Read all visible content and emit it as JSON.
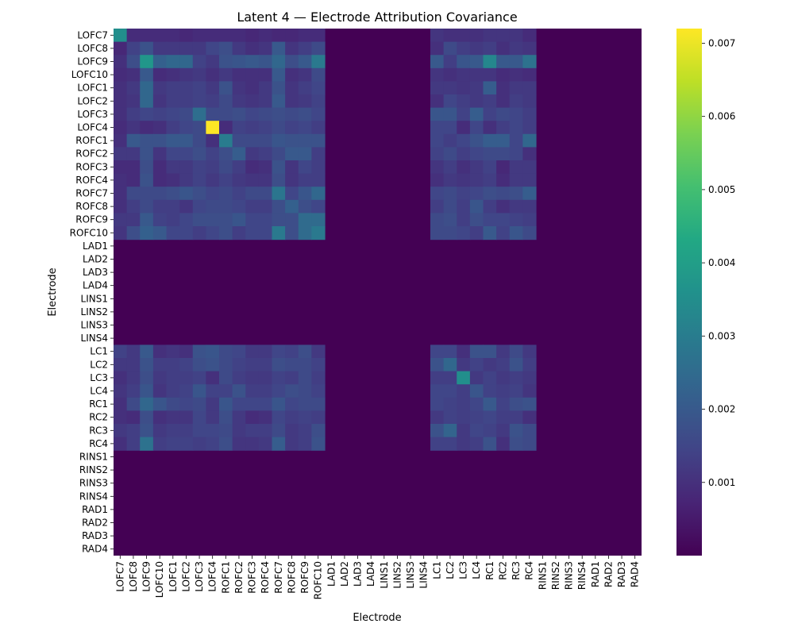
{
  "chart_data": {
    "type": "heatmap",
    "title": "Latent 4 — Electrode Attribution Covariance",
    "xlabel": "Electrode",
    "ylabel": "Electrode",
    "labels": [
      "LOFC7",
      "LOFC8",
      "LOFC9",
      "LOFC10",
      "LOFC1",
      "LOFC2",
      "LOFC3",
      "LOFC4",
      "ROFC1",
      "ROFC2",
      "ROFC3",
      "ROFC4",
      "ROFC7",
      "ROFC8",
      "ROFC9",
      "ROFC10",
      "LAD1",
      "LAD2",
      "LAD3",
      "LAD4",
      "LINS1",
      "LINS2",
      "LINS3",
      "LINS4",
      "LC1",
      "LC2",
      "LC3",
      "LC4",
      "RC1",
      "RC2",
      "RC3",
      "RC4",
      "RINS1",
      "RINS2",
      "RINS3",
      "RINS4",
      "RAD1",
      "RAD2",
      "RAD3",
      "RAD4"
    ],
    "colormap": "viridis",
    "vmin": 0.0,
    "vmax": 0.0072,
    "colorbar_ticks": [
      0.001,
      0.002,
      0.003,
      0.004,
      0.005,
      0.006,
      0.007
    ],
    "colorbar_tick_labels": [
      "0.001",
      "0.002",
      "0.003",
      "0.004",
      "0.005",
      "0.006",
      "0.007"
    ],
    "active_blocks": [
      [
        0,
        16
      ],
      [
        24,
        32
      ]
    ],
    "background_value": 0.0,
    "values_active": [
      [
        0.0035,
        0.0009,
        0.0009,
        0.0009,
        0.0009,
        0.0008,
        0.0009,
        0.0009,
        0.0009,
        0.0009,
        0.0008,
        0.0009,
        0.0008,
        0.0008,
        0.0009,
        0.0009,
        0.0011,
        0.001,
        0.001,
        0.001,
        0.0011,
        0.0011,
        0.0011,
        0.0009
      ],
      [
        0.0008,
        0.0014,
        0.0018,
        0.0012,
        0.0012,
        0.0012,
        0.0012,
        0.0015,
        0.0017,
        0.0012,
        0.001,
        0.0011,
        0.002,
        0.0011,
        0.0013,
        0.0016,
        0.001,
        0.0016,
        0.0013,
        0.0012,
        0.0013,
        0.001,
        0.0012,
        0.0011
      ],
      [
        0.001,
        0.0017,
        0.0038,
        0.0022,
        0.0024,
        0.0024,
        0.0014,
        0.0012,
        0.0018,
        0.0019,
        0.002,
        0.0019,
        0.0024,
        0.0017,
        0.002,
        0.0029,
        0.002,
        0.0013,
        0.0019,
        0.002,
        0.0033,
        0.002,
        0.002,
        0.0027
      ],
      [
        0.0009,
        0.001,
        0.002,
        0.0009,
        0.001,
        0.0011,
        0.0012,
        0.001,
        0.0012,
        0.001,
        0.001,
        0.001,
        0.002,
        0.001,
        0.0011,
        0.0016,
        0.0011,
        0.001,
        0.0011,
        0.0011,
        0.0011,
        0.0009,
        0.001,
        0.0009
      ],
      [
        0.001,
        0.0012,
        0.0024,
        0.0012,
        0.0013,
        0.0013,
        0.0014,
        0.0012,
        0.0018,
        0.0011,
        0.001,
        0.0012,
        0.0018,
        0.0011,
        0.0013,
        0.0015,
        0.0012,
        0.0012,
        0.0011,
        0.0012,
        0.0021,
        0.001,
        0.0012,
        0.0012
      ],
      [
        0.001,
        0.0011,
        0.0024,
        0.0011,
        0.0013,
        0.0013,
        0.0014,
        0.0013,
        0.0016,
        0.0012,
        0.0011,
        0.0012,
        0.002,
        0.0011,
        0.0012,
        0.0014,
        0.001,
        0.0015,
        0.0013,
        0.0012,
        0.0013,
        0.001,
        0.0013,
        0.0012
      ],
      [
        0.001,
        0.0013,
        0.0015,
        0.0014,
        0.0015,
        0.0016,
        0.0026,
        0.0016,
        0.0016,
        0.0017,
        0.0015,
        0.0016,
        0.0017,
        0.0016,
        0.0017,
        0.0015,
        0.0019,
        0.0019,
        0.0014,
        0.0021,
        0.0014,
        0.0016,
        0.0015,
        0.0013
      ],
      [
        0.0009,
        0.0011,
        0.0009,
        0.001,
        0.0013,
        0.0015,
        0.0016,
        0.0072,
        0.0009,
        0.0014,
        0.0013,
        0.0014,
        0.0016,
        0.0014,
        0.0015,
        0.0013,
        0.0015,
        0.0015,
        0.0009,
        0.0015,
        0.001,
        0.0013,
        0.0015,
        0.0013
      ],
      [
        0.001,
        0.002,
        0.0018,
        0.0018,
        0.002,
        0.002,
        0.0016,
        0.001,
        0.003,
        0.0016,
        0.0016,
        0.0016,
        0.0019,
        0.0018,
        0.0018,
        0.0018,
        0.0015,
        0.0013,
        0.0015,
        0.0018,
        0.0021,
        0.0021,
        0.0015,
        0.0024
      ],
      [
        0.0012,
        0.0012,
        0.0018,
        0.0011,
        0.0015,
        0.0015,
        0.0017,
        0.0014,
        0.0017,
        0.0021,
        0.0012,
        0.0013,
        0.0016,
        0.002,
        0.002,
        0.0013,
        0.0014,
        0.0016,
        0.0013,
        0.0015,
        0.0016,
        0.0016,
        0.0015,
        0.001
      ],
      [
        0.0009,
        0.0009,
        0.0017,
        0.0009,
        0.0012,
        0.0012,
        0.0014,
        0.0013,
        0.0016,
        0.0013,
        0.0009,
        0.001,
        0.0018,
        0.0011,
        0.0015,
        0.0013,
        0.0011,
        0.0013,
        0.001,
        0.0012,
        0.0014,
        0.0008,
        0.0012,
        0.0012
      ],
      [
        0.001,
        0.0009,
        0.0018,
        0.0009,
        0.001,
        0.0012,
        0.0014,
        0.0012,
        0.0014,
        0.0012,
        0.0011,
        0.0011,
        0.0017,
        0.0011,
        0.0013,
        0.0013,
        0.001,
        0.0012,
        0.0011,
        0.0012,
        0.0013,
        0.0009,
        0.0012,
        0.0012
      ],
      [
        0.001,
        0.0016,
        0.0016,
        0.0016,
        0.0017,
        0.0019,
        0.0017,
        0.0015,
        0.0016,
        0.0014,
        0.0016,
        0.0016,
        0.0028,
        0.0015,
        0.0019,
        0.0024,
        0.0015,
        0.0016,
        0.0014,
        0.0015,
        0.0017,
        0.0016,
        0.0017,
        0.0021
      ],
      [
        0.001,
        0.0013,
        0.0016,
        0.0013,
        0.0013,
        0.0011,
        0.0015,
        0.0016,
        0.0016,
        0.0015,
        0.0013,
        0.0013,
        0.0017,
        0.0022,
        0.0017,
        0.0015,
        0.0013,
        0.0016,
        0.0013,
        0.0019,
        0.0013,
        0.001,
        0.0012,
        0.0012
      ],
      [
        0.0012,
        0.0012,
        0.002,
        0.0014,
        0.0013,
        0.0015,
        0.0017,
        0.0017,
        0.0017,
        0.0019,
        0.0015,
        0.0015,
        0.0017,
        0.0017,
        0.0025,
        0.0025,
        0.0016,
        0.0017,
        0.0013,
        0.0017,
        0.0015,
        0.0015,
        0.0014,
        0.0013
      ],
      [
        0.0011,
        0.0017,
        0.0022,
        0.002,
        0.0015,
        0.0015,
        0.0013,
        0.0015,
        0.0017,
        0.0013,
        0.0015,
        0.0015,
        0.0029,
        0.0017,
        0.0025,
        0.0029,
        0.0016,
        0.0016,
        0.0015,
        0.0013,
        0.002,
        0.0014,
        0.0019,
        0.0016
      ],
      [
        0.0014,
        0.0012,
        0.002,
        0.001,
        0.0011,
        0.001,
        0.0018,
        0.0019,
        0.0016,
        0.0015,
        0.0012,
        0.0012,
        0.0015,
        0.0014,
        0.0017,
        0.0012,
        0.0015,
        0.0015,
        0.001,
        0.0018,
        0.0018,
        0.0012,
        0.0016,
        0.0012
      ],
      [
        0.0012,
        0.0012,
        0.0018,
        0.0013,
        0.0013,
        0.0014,
        0.0017,
        0.0018,
        0.0016,
        0.0014,
        0.0013,
        0.0013,
        0.0017,
        0.0016,
        0.0016,
        0.0014,
        0.0018,
        0.0024,
        0.0012,
        0.0014,
        0.0012,
        0.0013,
        0.0018,
        0.0013
      ],
      [
        0.001,
        0.0012,
        0.0017,
        0.0012,
        0.0013,
        0.0013,
        0.0014,
        0.001,
        0.0016,
        0.0013,
        0.0012,
        0.0012,
        0.0014,
        0.0013,
        0.0016,
        0.0013,
        0.0013,
        0.0013,
        0.0035,
        0.0012,
        0.0014,
        0.0012,
        0.0013,
        0.0012
      ],
      [
        0.0011,
        0.0013,
        0.0019,
        0.0011,
        0.0013,
        0.0014,
        0.0019,
        0.0014,
        0.0014,
        0.0018,
        0.0013,
        0.0013,
        0.0015,
        0.0017,
        0.0016,
        0.0014,
        0.0015,
        0.0015,
        0.0013,
        0.0019,
        0.0014,
        0.0013,
        0.0014,
        0.0011
      ],
      [
        0.001,
        0.0016,
        0.0024,
        0.0019,
        0.0016,
        0.0015,
        0.0016,
        0.0012,
        0.0019,
        0.0015,
        0.0015,
        0.0015,
        0.0019,
        0.0015,
        0.0016,
        0.0016,
        0.0015,
        0.0014,
        0.0013,
        0.0015,
        0.002,
        0.0014,
        0.0017,
        0.0018
      ],
      [
        0.001,
        0.0009,
        0.0017,
        0.001,
        0.0011,
        0.0011,
        0.0015,
        0.0012,
        0.0017,
        0.0012,
        0.0009,
        0.001,
        0.0015,
        0.0013,
        0.0014,
        0.0013,
        0.0012,
        0.0014,
        0.0013,
        0.0014,
        0.0015,
        0.0013,
        0.0013,
        0.001
      ],
      [
        0.0012,
        0.0013,
        0.0018,
        0.0012,
        0.0013,
        0.0013,
        0.0015,
        0.0015,
        0.0016,
        0.0012,
        0.0013,
        0.0013,
        0.0016,
        0.0012,
        0.0013,
        0.0017,
        0.0018,
        0.0023,
        0.0012,
        0.0015,
        0.0014,
        0.0012,
        0.0018,
        0.0016
      ],
      [
        0.001,
        0.0013,
        0.0027,
        0.0013,
        0.0014,
        0.0014,
        0.0013,
        0.0014,
        0.0017,
        0.0011,
        0.0011,
        0.0012,
        0.0021,
        0.0012,
        0.0013,
        0.0018,
        0.0014,
        0.0014,
        0.0012,
        0.0013,
        0.0018,
        0.001,
        0.0017,
        0.0016
      ]
    ]
  }
}
